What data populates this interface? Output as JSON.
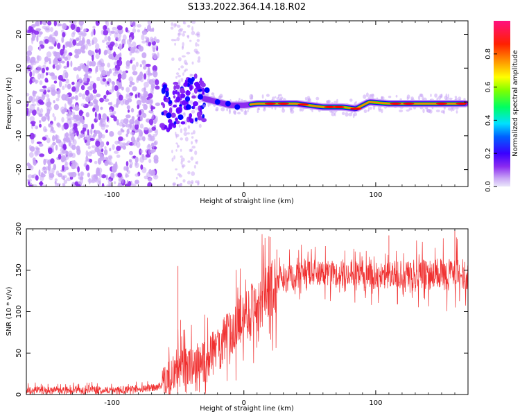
{
  "title": "S133.2022.364.14.18.R02",
  "chart_data": [
    {
      "type": "heatmap",
      "xlabel": "Height of straight line (km)",
      "ylabel": "Frequency (Hz)",
      "xlim": [
        -165,
        170
      ],
      "ylim": [
        -25,
        24
      ],
      "xticks": [
        -100,
        0,
        100
      ],
      "xtick_labels": [
        "-100",
        "0",
        "100"
      ],
      "yticks": [
        -20,
        -10,
        0,
        10,
        20
      ],
      "ytick_labels": [
        "-20",
        "-10",
        "0",
        "10",
        "20"
      ],
      "colorbar": {
        "label": "Normalized spectral amplitude",
        "ticks": [
          0.0,
          0.2,
          0.4,
          0.6,
          0.8
        ],
        "tick_labels": [
          "0.0",
          "0.2",
          "0.4",
          "0.6",
          "0.8"
        ],
        "range": [
          0,
          1
        ],
        "colormap": [
          "#e4e4f8",
          "#c9a6f5",
          "#8b2bf0",
          "#6600ff",
          "#0000ff",
          "#00b0ff",
          "#00ffff",
          "#00ff00",
          "#ffff00",
          "#ff8000",
          "#ff0000",
          "#ff0080"
        ]
      },
      "ridge": [
        {
          "x": -60,
          "y": -2
        },
        {
          "x": -45,
          "y": -2
        },
        {
          "x": -30,
          "y": 1
        },
        {
          "x": -20,
          "y": 0
        },
        {
          "x": -10,
          "y": -1
        },
        {
          "x": 0,
          "y": -1
        },
        {
          "x": 10,
          "y": -0.5
        },
        {
          "x": 40,
          "y": -0.5
        },
        {
          "x": 60,
          "y": -1.5
        },
        {
          "x": 75,
          "y": -1.5
        },
        {
          "x": 85,
          "y": -2
        },
        {
          "x": 95,
          "y": 0
        },
        {
          "x": 110,
          "y": -0.5
        },
        {
          "x": 168,
          "y": -0.5
        }
      ]
    },
    {
      "type": "line",
      "xlabel": "Height of straight line (km)",
      "ylabel": "SNR (10 * v/v)",
      "xlim": [
        -165,
        170
      ],
      "ylim": [
        0,
        200
      ],
      "xticks": [
        -100,
        0,
        100
      ],
      "xtick_labels": [
        "-100",
        "0",
        "100"
      ],
      "yticks": [
        0,
        50,
        100,
        150,
        200
      ],
      "ytick_labels": [
        "0",
        "50",
        "100",
        "150",
        "200"
      ],
      "color": "#f03030",
      "trend": [
        {
          "x": -165,
          "y": 5
        },
        {
          "x": -80,
          "y": 6
        },
        {
          "x": -62,
          "y": 10
        },
        {
          "x": -50,
          "y": 30
        },
        {
          "x": -40,
          "y": 35
        },
        {
          "x": -30,
          "y": 40
        },
        {
          "x": -20,
          "y": 55
        },
        {
          "x": -10,
          "y": 75
        },
        {
          "x": 0,
          "y": 95
        },
        {
          "x": 10,
          "y": 110
        },
        {
          "x": 20,
          "y": 125
        },
        {
          "x": 30,
          "y": 138
        },
        {
          "x": 40,
          "y": 145
        },
        {
          "x": 50,
          "y": 148
        },
        {
          "x": 60,
          "y": 147
        },
        {
          "x": 80,
          "y": 146
        },
        {
          "x": 100,
          "y": 142
        },
        {
          "x": 120,
          "y": 145
        },
        {
          "x": 140,
          "y": 145
        },
        {
          "x": 170,
          "y": 145
        }
      ],
      "spikes": [
        {
          "x": -50,
          "y": 155
        },
        {
          "x": -48,
          "y": 90
        },
        {
          "x": 20,
          "y": 190
        },
        {
          "x": 25,
          "y": 175
        },
        {
          "x": 110,
          "y": 192
        },
        {
          "x": 160,
          "y": 198
        }
      ]
    }
  ]
}
